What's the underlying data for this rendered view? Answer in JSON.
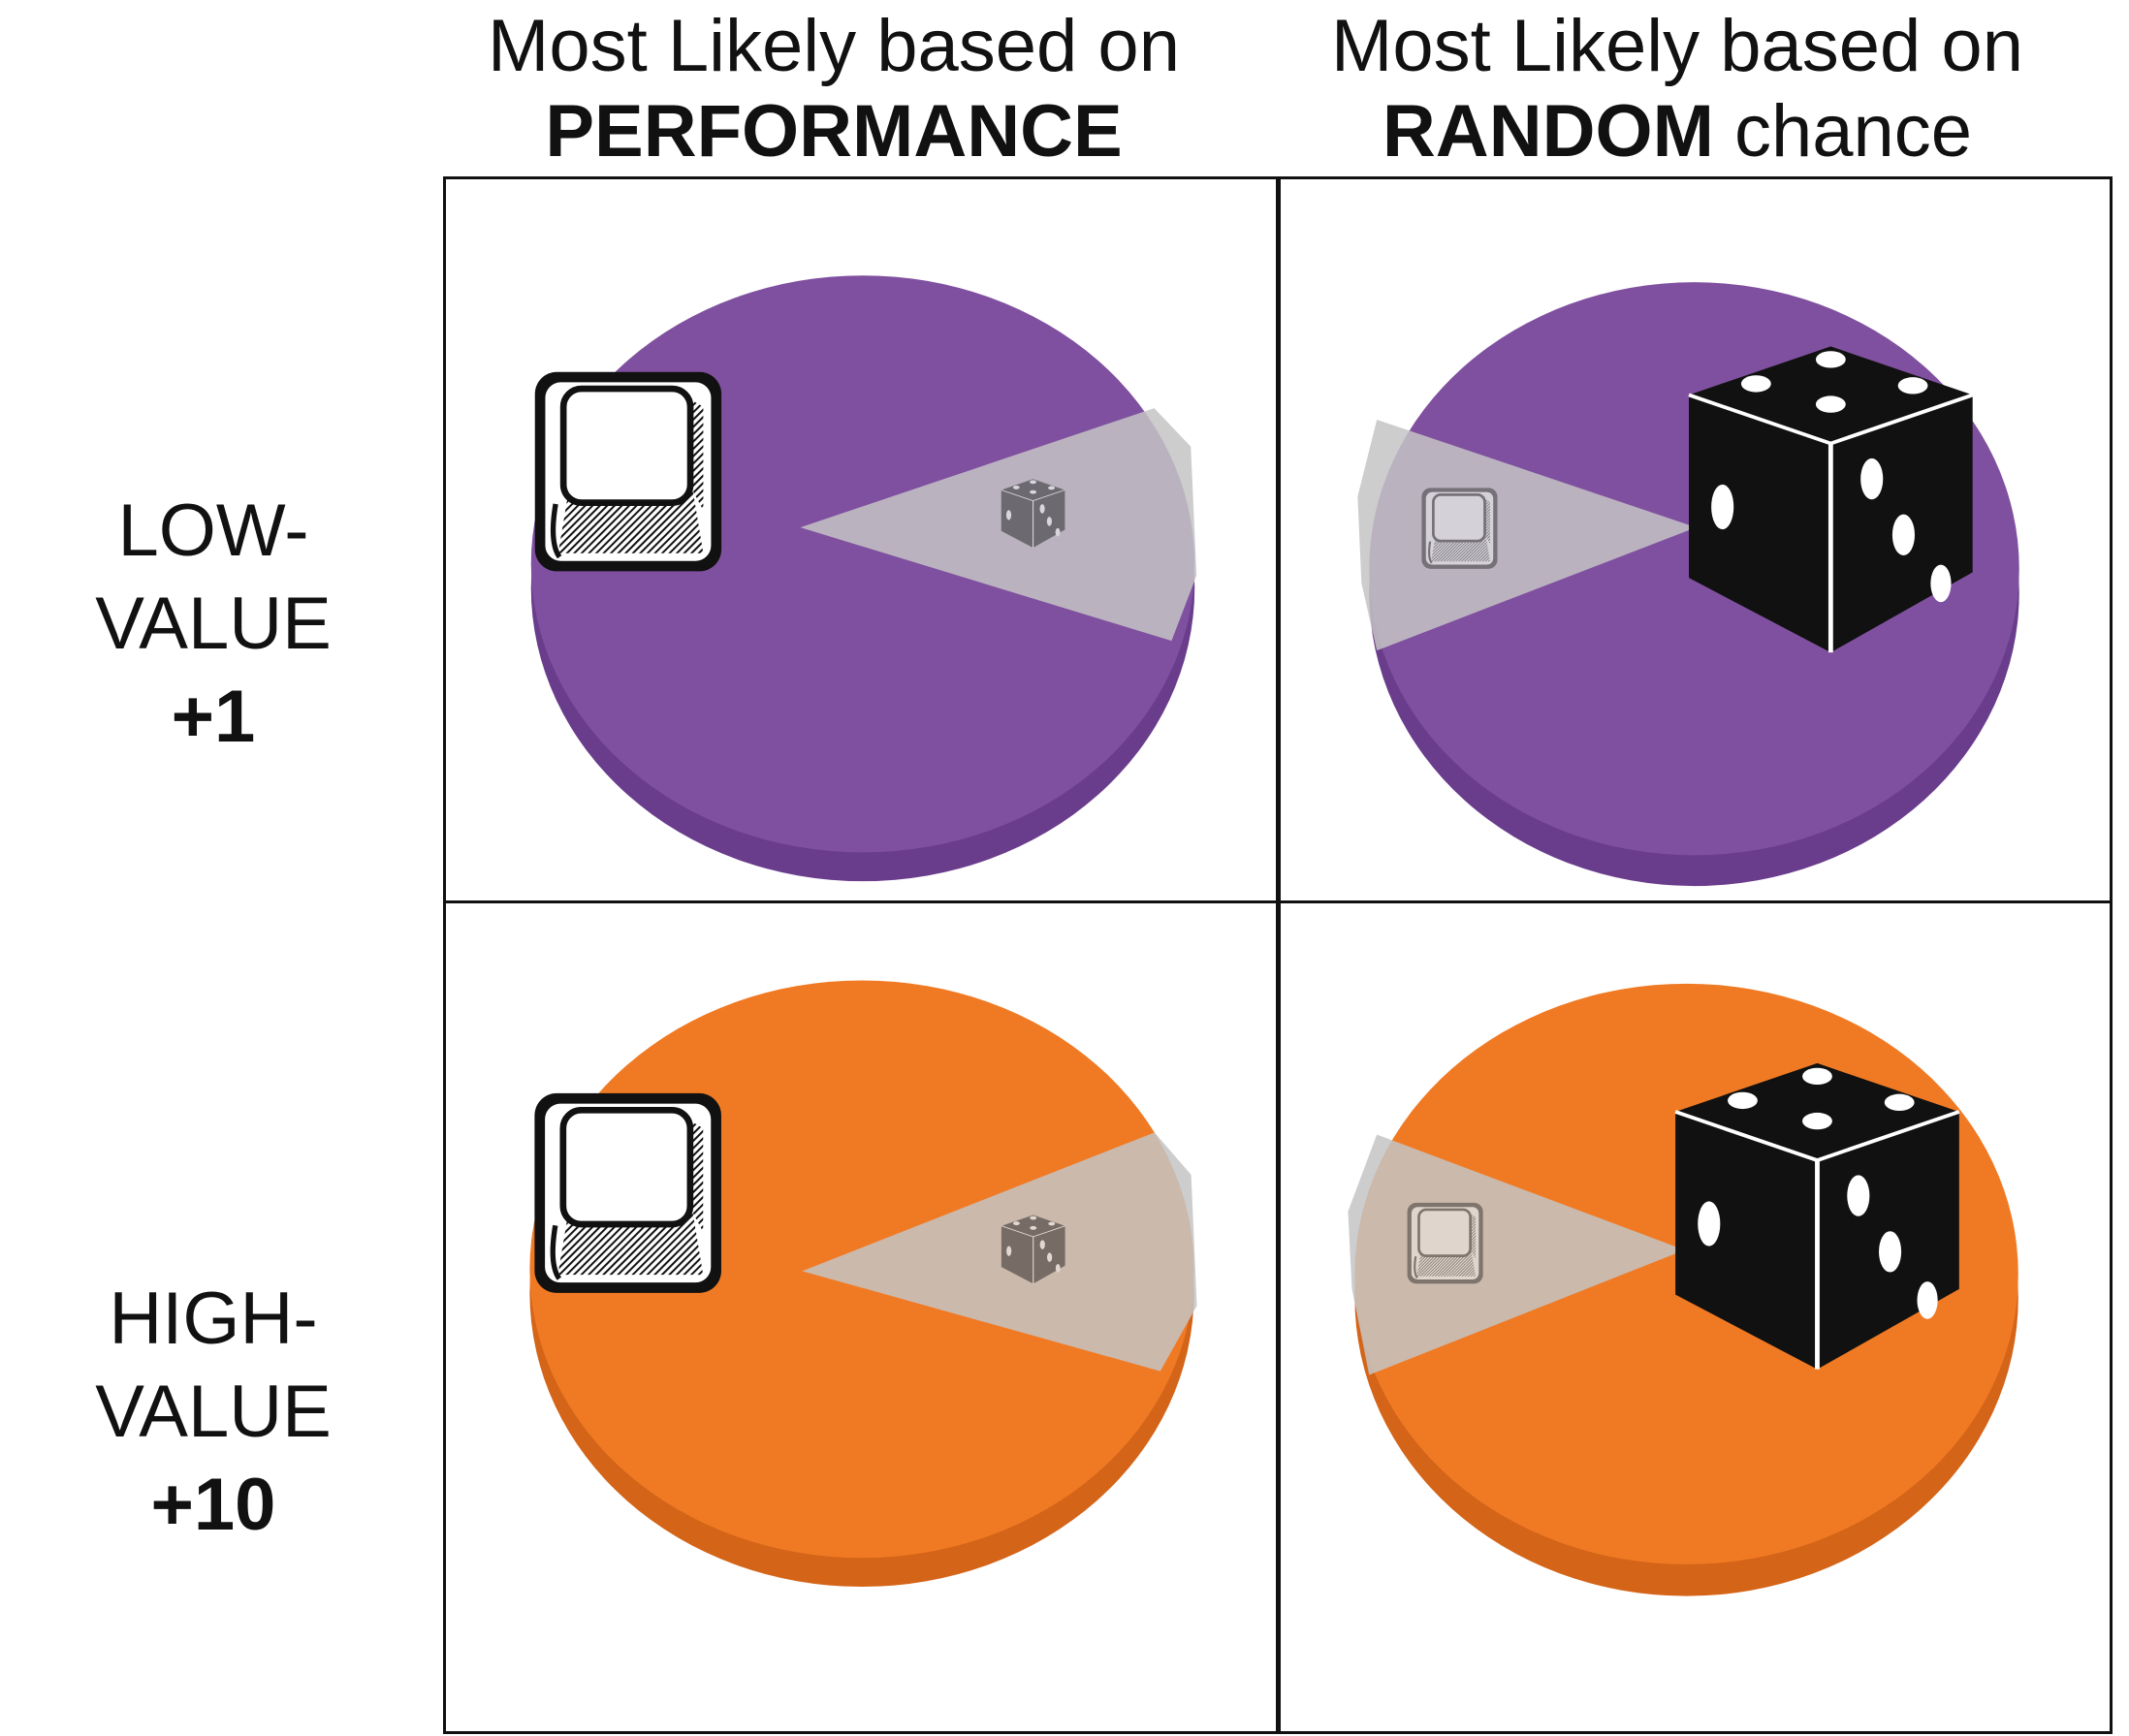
{
  "columns": [
    {
      "line1": "Most Likely based on",
      "bold": "PERFORMANCE",
      "rest": ""
    },
    {
      "line1": "Most Likely based on",
      "bold": "RANDOM",
      "rest": " chance"
    }
  ],
  "rows": [
    {
      "label": "LOW-VALUE",
      "value": "+1"
    },
    {
      "label": "HIGH-VALUE",
      "value": "+10"
    }
  ],
  "colors": {
    "low_value_chip": "#8050a0",
    "low_value_chip_rim": "#6a3c8c",
    "high_value_chip": "#f07a24",
    "high_value_chip_rim": "#d46418",
    "wedge": "#c4c4c4"
  },
  "cells": [
    {
      "row": "LOW-VALUE",
      "column": "PERFORMANCE",
      "chip": "low_value_chip",
      "main_icon": "keycap-icon",
      "wedge_icon": "dice-icon"
    },
    {
      "row": "LOW-VALUE",
      "column": "RANDOM",
      "chip": "low_value_chip",
      "main_icon": "dice-icon",
      "wedge_icon": "keycap-icon"
    },
    {
      "row": "HIGH-VALUE",
      "column": "PERFORMANCE",
      "chip": "high_value_chip",
      "main_icon": "keycap-icon",
      "wedge_icon": "dice-icon"
    },
    {
      "row": "HIGH-VALUE",
      "column": "RANDOM",
      "chip": "high_value_chip",
      "main_icon": "dice-icon",
      "wedge_icon": "keycap-icon"
    }
  ]
}
